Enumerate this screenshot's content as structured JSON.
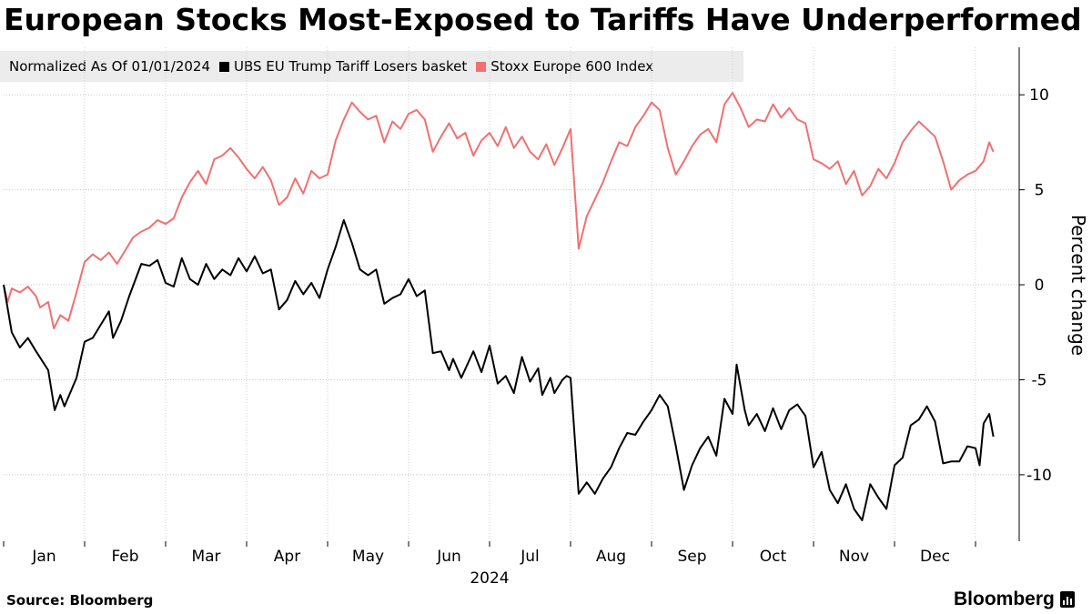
{
  "title": "European Stocks Most-Exposed to Tariffs Have Underperformed",
  "legend": {
    "label": "Normalized As Of 01/01/2024",
    "series": [
      {
        "name": "UBS EU Trump Tariff Losers basket",
        "color": "#000000"
      },
      {
        "name": "Stoxx Europe 600 Index",
        "color": "#f07070"
      }
    ]
  },
  "source": "Source: Bloomberg",
  "brand": "Bloomberg",
  "chart_data": {
    "type": "line",
    "ylabel": "Percent change",
    "xlabel": "2024",
    "ylim": [
      -13.5,
      12.5
    ],
    "yticks": [
      10,
      5,
      0,
      -5,
      -10
    ],
    "ytick_labels": [
      "10",
      "5",
      "0",
      "-5",
      "-10"
    ],
    "months": [
      "Jan",
      "Feb",
      "Mar",
      "Apr",
      "May",
      "Jun",
      "Jul",
      "Aug",
      "Sep",
      "Oct",
      "Nov",
      "Dec"
    ],
    "series": [
      {
        "name": "UBS EU Trump Tariff Losers basket",
        "color": "#000000",
        "points": [
          [
            0.0,
            0.0
          ],
          [
            0.1,
            -2.5
          ],
          [
            0.2,
            -3.3
          ],
          [
            0.3,
            -2.8
          ],
          [
            0.4,
            -3.5
          ],
          [
            0.55,
            -4.5
          ],
          [
            0.63,
            -6.6
          ],
          [
            0.7,
            -5.8
          ],
          [
            0.75,
            -6.4
          ],
          [
            0.82,
            -5.7
          ],
          [
            0.9,
            -4.9
          ],
          [
            1.0,
            -3.0
          ],
          [
            1.1,
            -2.8
          ],
          [
            1.2,
            -2.1
          ],
          [
            1.3,
            -1.4
          ],
          [
            1.35,
            -2.8
          ],
          [
            1.45,
            -1.9
          ],
          [
            1.55,
            -0.6
          ],
          [
            1.7,
            1.1
          ],
          [
            1.8,
            1.0
          ],
          [
            1.9,
            1.3
          ],
          [
            2.0,
            0.1
          ],
          [
            2.1,
            -0.1
          ],
          [
            2.2,
            1.4
          ],
          [
            2.3,
            0.3
          ],
          [
            2.4,
            0.0
          ],
          [
            2.5,
            1.1
          ],
          [
            2.6,
            0.3
          ],
          [
            2.7,
            0.8
          ],
          [
            2.8,
            0.5
          ],
          [
            2.9,
            1.4
          ],
          [
            3.0,
            0.7
          ],
          [
            3.1,
            1.5
          ],
          [
            3.2,
            0.6
          ],
          [
            3.3,
            0.8
          ],
          [
            3.4,
            -1.3
          ],
          [
            3.5,
            -0.8
          ],
          [
            3.6,
            0.2
          ],
          [
            3.7,
            -0.5
          ],
          [
            3.8,
            0.1
          ],
          [
            3.9,
            -0.7
          ],
          [
            4.0,
            0.8
          ],
          [
            4.1,
            2.0
          ],
          [
            4.2,
            3.4
          ],
          [
            4.3,
            2.2
          ],
          [
            4.4,
            0.8
          ],
          [
            4.5,
            0.5
          ],
          [
            4.6,
            0.8
          ],
          [
            4.7,
            -1.0
          ],
          [
            4.8,
            -0.7
          ],
          [
            4.9,
            -0.5
          ],
          [
            5.0,
            0.3
          ],
          [
            5.1,
            -0.6
          ],
          [
            5.2,
            -0.3
          ],
          [
            5.3,
            -3.6
          ],
          [
            5.4,
            -3.5
          ],
          [
            5.5,
            -4.5
          ],
          [
            5.55,
            -3.9
          ],
          [
            5.65,
            -4.9
          ],
          [
            5.8,
            -3.5
          ],
          [
            5.9,
            -4.6
          ],
          [
            6.0,
            -3.2
          ],
          [
            6.1,
            -5.2
          ],
          [
            6.2,
            -4.8
          ],
          [
            6.3,
            -5.7
          ],
          [
            6.4,
            -3.8
          ],
          [
            6.5,
            -5.1
          ],
          [
            6.6,
            -4.4
          ],
          [
            6.65,
            -5.8
          ],
          [
            6.75,
            -4.9
          ],
          [
            6.8,
            -5.7
          ],
          [
            6.9,
            -5.0
          ],
          [
            6.95,
            -4.8
          ],
          [
            7.0,
            -4.9
          ],
          [
            7.1,
            -11.0
          ],
          [
            7.2,
            -10.4
          ],
          [
            7.3,
            -11.0
          ],
          [
            7.4,
            -10.2
          ],
          [
            7.5,
            -9.6
          ],
          [
            7.6,
            -8.6
          ],
          [
            7.7,
            -7.8
          ],
          [
            7.8,
            -7.9
          ],
          [
            7.9,
            -7.2
          ],
          [
            8.0,
            -6.6
          ],
          [
            8.1,
            -5.8
          ],
          [
            8.2,
            -6.4
          ],
          [
            8.3,
            -8.5
          ],
          [
            8.4,
            -10.8
          ],
          [
            8.5,
            -9.5
          ],
          [
            8.6,
            -8.6
          ],
          [
            8.7,
            -8.0
          ],
          [
            8.8,
            -9.0
          ],
          [
            8.9,
            -6.0
          ],
          [
            9.0,
            -6.8
          ],
          [
            9.05,
            -4.2
          ],
          [
            9.15,
            -6.6
          ],
          [
            9.2,
            -7.4
          ],
          [
            9.3,
            -6.8
          ],
          [
            9.4,
            -7.7
          ],
          [
            9.5,
            -6.5
          ],
          [
            9.6,
            -7.6
          ],
          [
            9.7,
            -6.6
          ],
          [
            9.8,
            -6.3
          ],
          [
            9.85,
            -6.6
          ],
          [
            9.9,
            -6.9
          ],
          [
            10.0,
            -9.6
          ],
          [
            10.1,
            -8.8
          ],
          [
            10.2,
            -10.8
          ],
          [
            10.3,
            -11.5
          ],
          [
            10.4,
            -10.5
          ],
          [
            10.5,
            -11.8
          ],
          [
            10.6,
            -12.4
          ],
          [
            10.7,
            -10.5
          ],
          [
            10.8,
            -11.2
          ],
          [
            10.9,
            -11.8
          ],
          [
            11.0,
            -9.5
          ],
          [
            11.1,
            -9.1
          ],
          [
            11.2,
            -7.4
          ],
          [
            11.3,
            -7.1
          ],
          [
            11.4,
            -6.4
          ],
          [
            11.5,
            -7.2
          ],
          [
            11.6,
            -9.4
          ],
          [
            11.7,
            -9.3
          ],
          [
            11.8,
            -9.3
          ],
          [
            11.9,
            -8.5
          ],
          [
            12.0,
            -8.6
          ],
          [
            12.05,
            -9.5
          ],
          [
            12.1,
            -7.3
          ],
          [
            12.17,
            -6.8
          ],
          [
            12.22,
            -8.0
          ]
        ]
      },
      {
        "name": "Stoxx Europe 600 Index",
        "color": "#f07070",
        "points": [
          [
            0.0,
            0.0
          ],
          [
            0.05,
            -0.9
          ],
          [
            0.1,
            -0.2
          ],
          [
            0.2,
            -0.4
          ],
          [
            0.3,
            -0.1
          ],
          [
            0.4,
            -0.6
          ],
          [
            0.45,
            -1.2
          ],
          [
            0.55,
            -0.9
          ],
          [
            0.62,
            -2.3
          ],
          [
            0.7,
            -1.6
          ],
          [
            0.8,
            -1.9
          ],
          [
            0.9,
            -0.4
          ],
          [
            1.0,
            1.2
          ],
          [
            1.1,
            1.6
          ],
          [
            1.2,
            1.3
          ],
          [
            1.3,
            1.7
          ],
          [
            1.4,
            1.1
          ],
          [
            1.5,
            1.8
          ],
          [
            1.6,
            2.5
          ],
          [
            1.7,
            2.8
          ],
          [
            1.8,
            3.0
          ],
          [
            1.9,
            3.4
          ],
          [
            2.0,
            3.2
          ],
          [
            2.1,
            3.5
          ],
          [
            2.2,
            4.6
          ],
          [
            2.3,
            5.4
          ],
          [
            2.4,
            6.0
          ],
          [
            2.5,
            5.3
          ],
          [
            2.6,
            6.6
          ],
          [
            2.7,
            6.8
          ],
          [
            2.8,
            7.2
          ],
          [
            2.9,
            6.7
          ],
          [
            3.0,
            6.1
          ],
          [
            3.1,
            5.6
          ],
          [
            3.2,
            6.2
          ],
          [
            3.3,
            5.5
          ],
          [
            3.4,
            4.2
          ],
          [
            3.5,
            4.6
          ],
          [
            3.6,
            5.6
          ],
          [
            3.7,
            4.8
          ],
          [
            3.8,
            6.0
          ],
          [
            3.9,
            5.6
          ],
          [
            4.0,
            5.8
          ],
          [
            4.1,
            7.6
          ],
          [
            4.2,
            8.7
          ],
          [
            4.3,
            9.6
          ],
          [
            4.4,
            9.1
          ],
          [
            4.5,
            8.7
          ],
          [
            4.6,
            8.9
          ],
          [
            4.7,
            7.5
          ],
          [
            4.8,
            8.6
          ],
          [
            4.9,
            8.2
          ],
          [
            5.0,
            9.0
          ],
          [
            5.1,
            9.2
          ],
          [
            5.2,
            8.7
          ],
          [
            5.3,
            7.0
          ],
          [
            5.4,
            7.8
          ],
          [
            5.5,
            8.5
          ],
          [
            5.6,
            7.7
          ],
          [
            5.7,
            8.0
          ],
          [
            5.8,
            6.8
          ],
          [
            5.9,
            7.6
          ],
          [
            6.0,
            8.0
          ],
          [
            6.1,
            7.3
          ],
          [
            6.2,
            8.3
          ],
          [
            6.3,
            7.2
          ],
          [
            6.4,
            7.8
          ],
          [
            6.5,
            7.0
          ],
          [
            6.6,
            6.6
          ],
          [
            6.7,
            7.4
          ],
          [
            6.8,
            6.3
          ],
          [
            6.9,
            7.2
          ],
          [
            7.0,
            8.2
          ],
          [
            7.1,
            1.9
          ],
          [
            7.2,
            3.6
          ],
          [
            7.3,
            4.5
          ],
          [
            7.4,
            5.4
          ],
          [
            7.5,
            6.5
          ],
          [
            7.6,
            7.5
          ],
          [
            7.7,
            7.3
          ],
          [
            7.8,
            8.3
          ],
          [
            7.9,
            8.9
          ],
          [
            8.0,
            9.6
          ],
          [
            8.1,
            9.2
          ],
          [
            8.2,
            7.2
          ],
          [
            8.3,
            5.8
          ],
          [
            8.4,
            6.5
          ],
          [
            8.5,
            7.3
          ],
          [
            8.6,
            7.9
          ],
          [
            8.7,
            8.2
          ],
          [
            8.8,
            7.5
          ],
          [
            8.9,
            9.5
          ],
          [
            9.0,
            10.1
          ],
          [
            9.1,
            9.3
          ],
          [
            9.2,
            8.3
          ],
          [
            9.3,
            8.7
          ],
          [
            9.4,
            8.6
          ],
          [
            9.5,
            9.5
          ],
          [
            9.6,
            8.8
          ],
          [
            9.7,
            9.3
          ],
          [
            9.8,
            8.7
          ],
          [
            9.9,
            8.5
          ],
          [
            10.0,
            6.6
          ],
          [
            10.1,
            6.4
          ],
          [
            10.2,
            6.1
          ],
          [
            10.3,
            6.5
          ],
          [
            10.4,
            5.3
          ],
          [
            10.5,
            6.0
          ],
          [
            10.6,
            4.7
          ],
          [
            10.7,
            5.2
          ],
          [
            10.8,
            6.1
          ],
          [
            10.9,
            5.6
          ],
          [
            11.0,
            6.4
          ],
          [
            11.1,
            7.5
          ],
          [
            11.2,
            8.1
          ],
          [
            11.3,
            8.6
          ],
          [
            11.4,
            8.2
          ],
          [
            11.5,
            7.8
          ],
          [
            11.6,
            6.5
          ],
          [
            11.7,
            5.0
          ],
          [
            11.8,
            5.5
          ],
          [
            11.9,
            5.8
          ],
          [
            12.0,
            6.0
          ],
          [
            12.1,
            6.5
          ],
          [
            12.17,
            7.5
          ],
          [
            12.22,
            7.0
          ]
        ]
      }
    ]
  }
}
